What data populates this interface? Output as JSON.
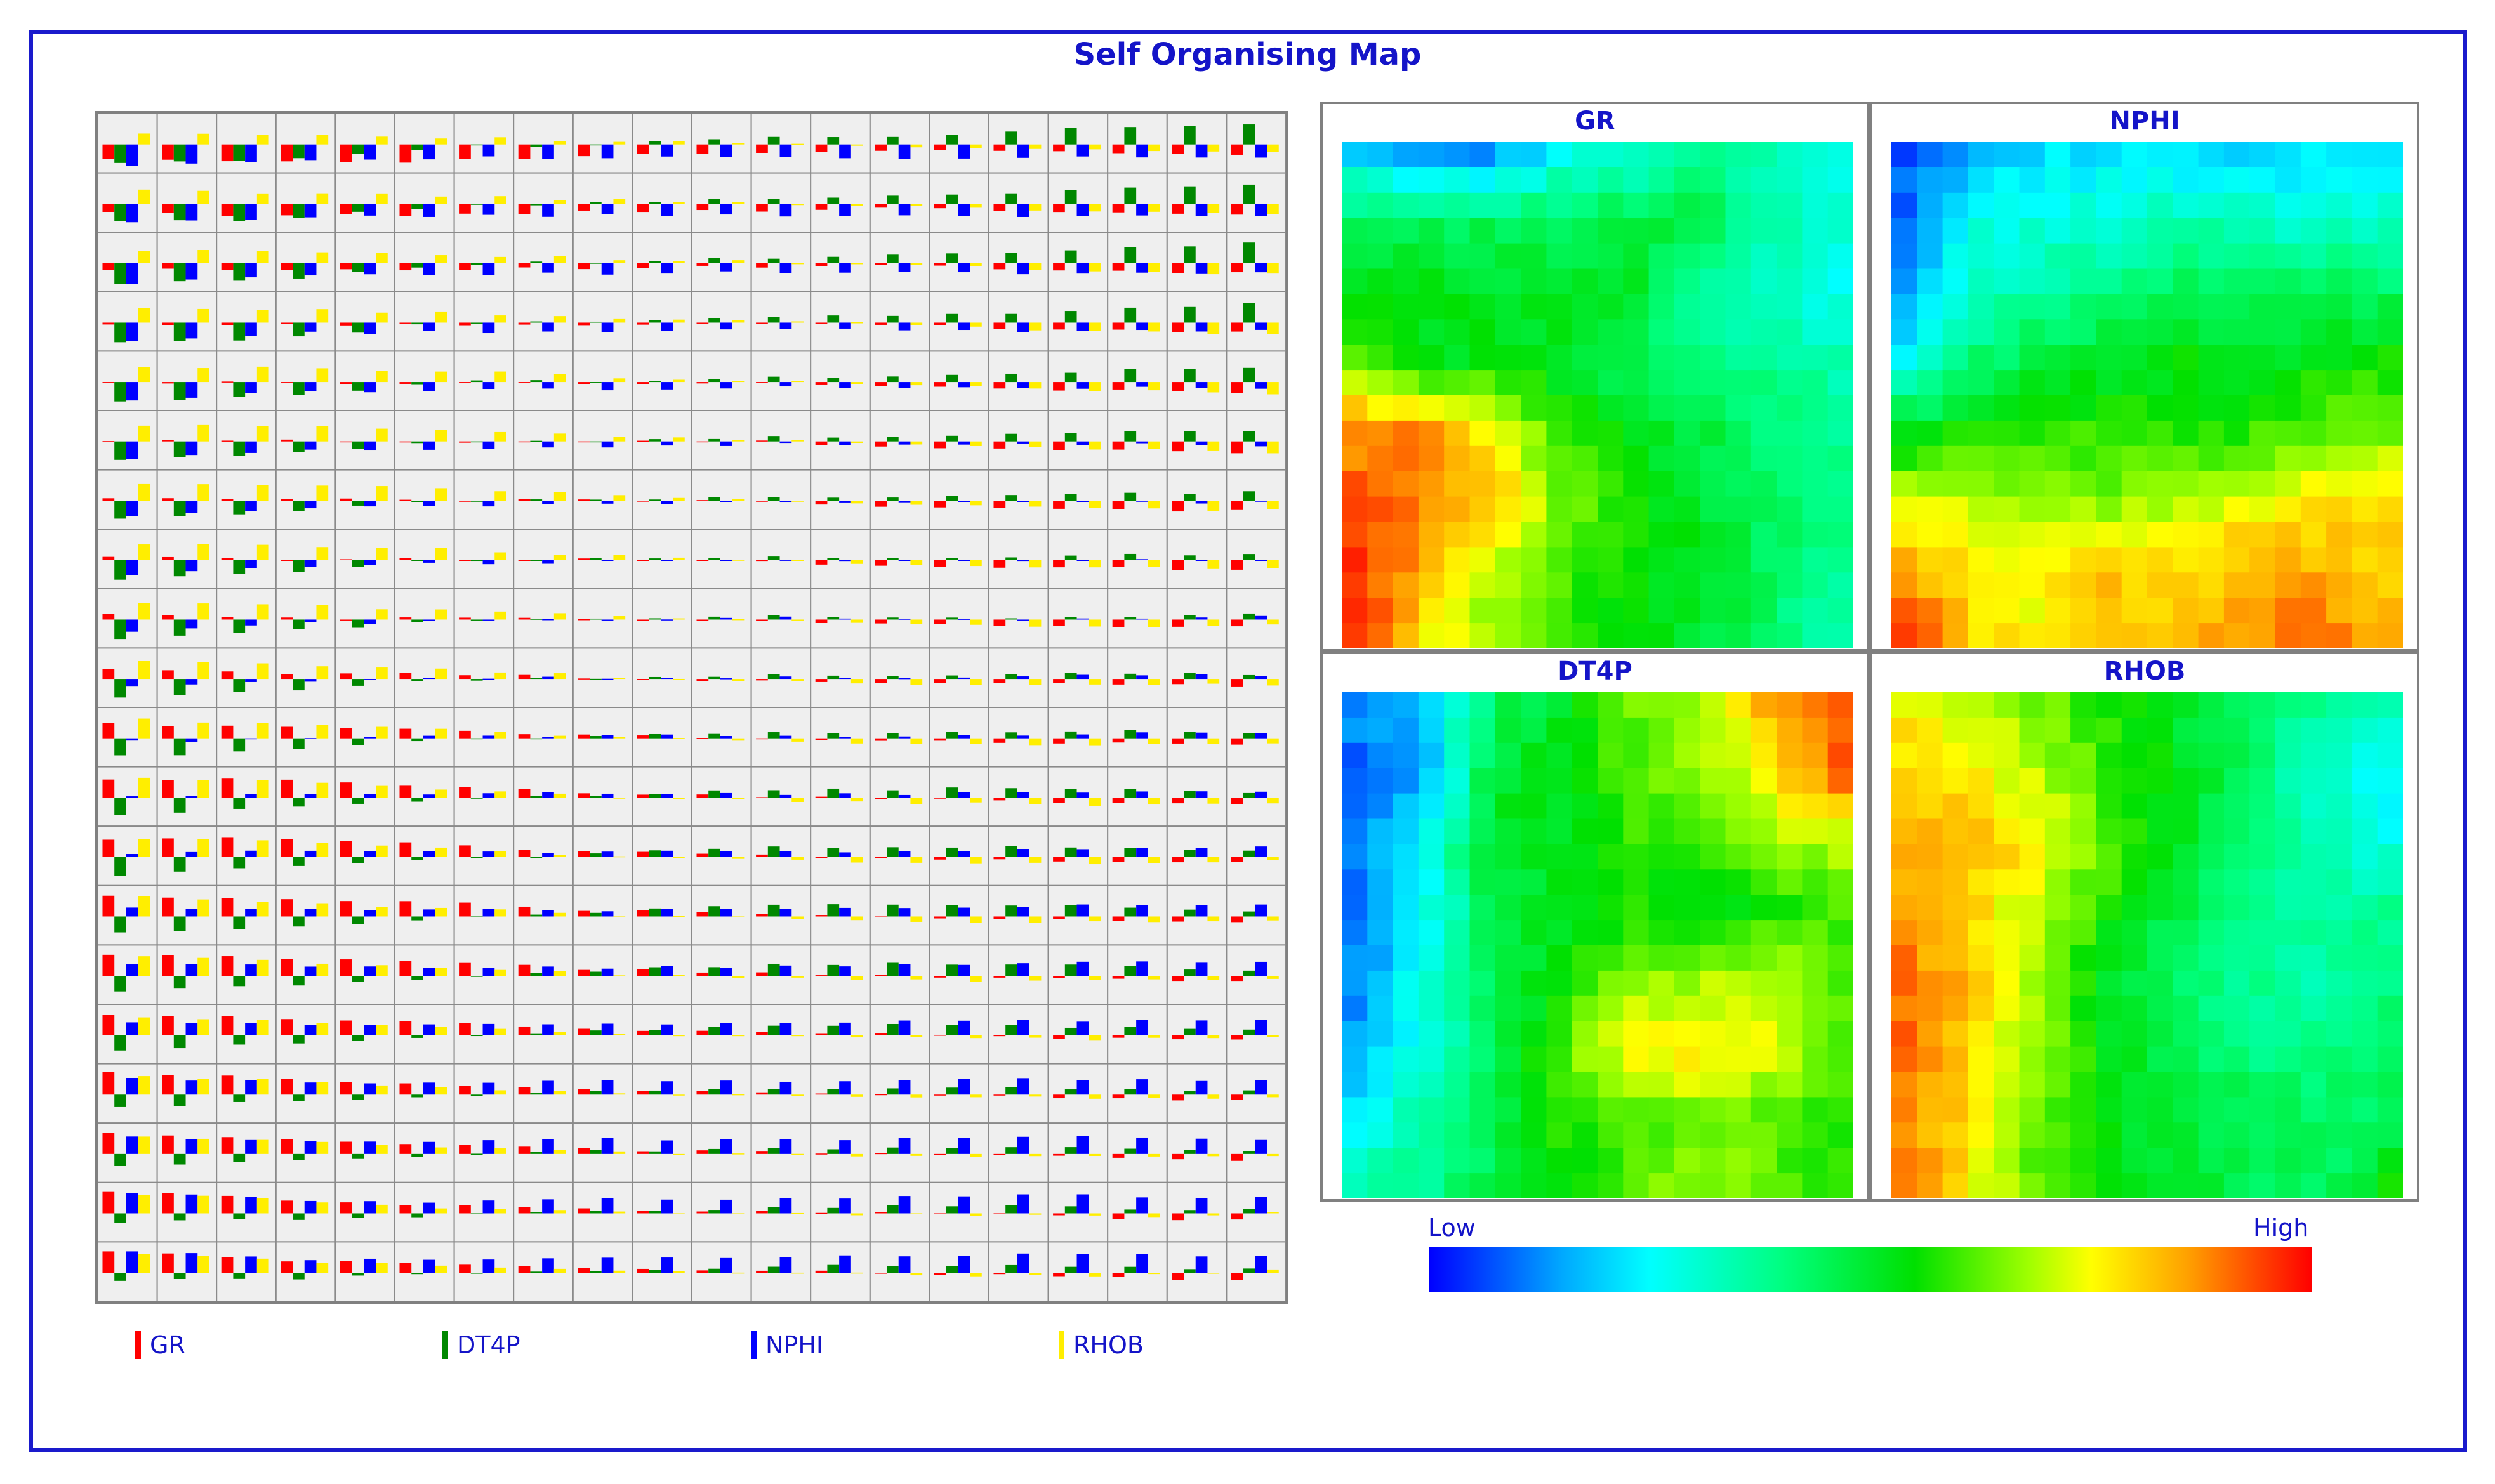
{
  "title": "Self Organising Map",
  "legend": [
    {
      "name": "GR",
      "color": "#ff0000"
    },
    {
      "name": "DT4P",
      "color": "#008800"
    },
    {
      "name": "NPHI",
      "color": "#0000ff"
    },
    {
      "name": "RHOB",
      "color": "#ffee00"
    }
  ],
  "colorbar": {
    "low_label": "Low",
    "high_label": "High"
  },
  "chart_data": {
    "type": "heatmap",
    "grid_size": [
      20,
      20
    ],
    "component_planes": [
      {
        "name": "GR",
        "anchors": [
          [
            0.22,
            0.16,
            0.14,
            0.27,
            0.3,
            0.4,
            0.32,
            0.26
          ],
          [
            0.45,
            0.44,
            0.46,
            0.44,
            0.47,
            0.46,
            0.34,
            0.3
          ],
          [
            0.52,
            0.53,
            0.5,
            0.53,
            0.5,
            0.35,
            0.3,
            0.27
          ],
          [
            0.64,
            0.52,
            0.54,
            0.5,
            0.44,
            0.42,
            0.38,
            0.34
          ],
          [
            0.86,
            0.88,
            0.72,
            0.6,
            0.52,
            0.48,
            0.4,
            0.38
          ],
          [
            0.92,
            0.9,
            0.83,
            0.64,
            0.56,
            0.5,
            0.42,
            0.38
          ],
          [
            0.95,
            0.84,
            0.7,
            0.6,
            0.55,
            0.52,
            0.44,
            0.38
          ],
          [
            0.96,
            0.78,
            0.66,
            0.58,
            0.54,
            0.5,
            0.42,
            0.34
          ]
        ]
      },
      {
        "name": "NPHI",
        "anchors": [
          [
            0.08,
            0.18,
            0.22,
            0.22,
            0.22,
            0.2,
            0.22,
            0.2
          ],
          [
            0.1,
            0.28,
            0.3,
            0.3,
            0.34,
            0.32,
            0.3,
            0.32
          ],
          [
            0.14,
            0.3,
            0.36,
            0.42,
            0.44,
            0.46,
            0.44,
            0.44
          ],
          [
            0.26,
            0.42,
            0.48,
            0.5,
            0.54,
            0.52,
            0.54,
            0.56
          ],
          [
            0.5,
            0.56,
            0.56,
            0.6,
            0.56,
            0.58,
            0.62,
            0.64
          ],
          [
            0.7,
            0.72,
            0.66,
            0.64,
            0.68,
            0.74,
            0.76,
            0.78
          ],
          [
            0.84,
            0.76,
            0.76,
            0.82,
            0.78,
            0.84,
            0.84,
            0.8
          ],
          [
            0.96,
            0.8,
            0.74,
            0.8,
            0.82,
            0.88,
            0.9,
            0.84
          ]
        ]
      },
      {
        "name": "DT4P",
        "anchors": [
          [
            0.14,
            0.2,
            0.44,
            0.5,
            0.64,
            0.68,
            0.84,
            0.9
          ],
          [
            0.08,
            0.14,
            0.5,
            0.54,
            0.6,
            0.66,
            0.76,
            0.92
          ],
          [
            0.12,
            0.24,
            0.52,
            0.52,
            0.58,
            0.6,
            0.66,
            0.7
          ],
          [
            0.1,
            0.26,
            0.46,
            0.52,
            0.56,
            0.54,
            0.56,
            0.6
          ],
          [
            0.12,
            0.28,
            0.44,
            0.56,
            0.66,
            0.68,
            0.7,
            0.62
          ],
          [
            0.14,
            0.3,
            0.44,
            0.62,
            0.76,
            0.8,
            0.72,
            0.6
          ],
          [
            0.22,
            0.36,
            0.46,
            0.58,
            0.6,
            0.64,
            0.62,
            0.58
          ],
          [
            0.34,
            0.38,
            0.46,
            0.52,
            0.62,
            0.68,
            0.62,
            0.58
          ]
        ]
      },
      {
        "name": "RHOB",
        "anchors": [
          [
            0.76,
            0.72,
            0.64,
            0.56,
            0.5,
            0.44,
            0.36,
            0.32
          ],
          [
            0.8,
            0.76,
            0.7,
            0.58,
            0.52,
            0.42,
            0.3,
            0.24
          ],
          [
            0.84,
            0.82,
            0.76,
            0.62,
            0.5,
            0.42,
            0.32,
            0.28
          ],
          [
            0.86,
            0.8,
            0.68,
            0.56,
            0.46,
            0.4,
            0.36,
            0.38
          ],
          [
            0.9,
            0.82,
            0.64,
            0.5,
            0.42,
            0.38,
            0.34,
            0.4
          ],
          [
            0.9,
            0.8,
            0.66,
            0.52,
            0.44,
            0.4,
            0.38,
            0.42
          ],
          [
            0.86,
            0.78,
            0.62,
            0.52,
            0.48,
            0.46,
            0.44,
            0.44
          ],
          [
            0.9,
            0.76,
            0.6,
            0.52,
            0.5,
            0.46,
            0.42,
            0.56
          ]
        ]
      }
    ],
    "anchor_note_scale": "0 = Low, 1 = High",
    "cell_bar_order": [
      "GR",
      "DT4P",
      "NPHI",
      "RHOB"
    ]
  }
}
